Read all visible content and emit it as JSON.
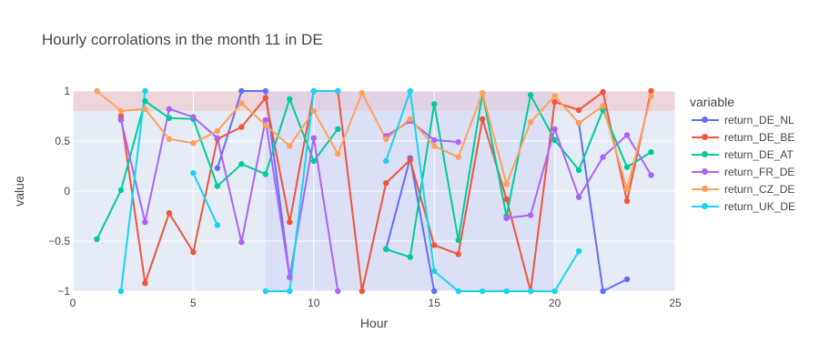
{
  "chart_data": {
    "type": "line",
    "title": "Hourly corrolations in the month 11 in DE",
    "xlabel": "Hour",
    "ylabel": "value",
    "xlim": [
      0,
      25
    ],
    "ylim": [
      -1,
      1
    ],
    "xticks": [
      0,
      5,
      10,
      15,
      20,
      25
    ],
    "yticks": [
      -1,
      -0.5,
      0,
      0.5,
      1
    ],
    "ytick_labels": [
      "−1",
      "−0.5",
      "0",
      "0.5",
      "1"
    ],
    "legend_title": "variable",
    "legend_position": "right",
    "background": "#e5ecf6",
    "shaded_regions": [
      {
        "type": "band_y",
        "y0": 0.8,
        "y1": 1.0,
        "color": "#f2c4c4"
      },
      {
        "type": "band_x",
        "x0": 8,
        "x1": 20,
        "color": "#c8ccf5"
      }
    ],
    "series": [
      {
        "name": "return_DE_NL",
        "color": "#636efa",
        "points": [
          [
            2,
            0.72
          ],
          [
            3,
            null
          ],
          [
            6,
            0.23
          ],
          [
            7,
            1.0
          ],
          [
            8,
            1.0
          ],
          [
            9,
            -0.86
          ],
          [
            10,
            null
          ],
          [
            13,
            -0.58
          ],
          [
            14,
            0.33
          ],
          [
            15,
            -1.0
          ],
          [
            16,
            null
          ],
          [
            18,
            -0.27
          ],
          [
            19,
            null
          ],
          [
            20,
            null
          ],
          [
            21,
            0.68
          ],
          [
            22,
            -1.0
          ],
          [
            23,
            -0.88
          ]
        ]
      },
      {
        "name": "return_DE_BE",
        "color": "#ef553b",
        "points": [
          [
            2,
            0.75
          ],
          [
            3,
            -0.92
          ],
          [
            4,
            -0.22
          ],
          [
            5,
            -0.61
          ],
          [
            6,
            0.52
          ],
          [
            7,
            0.64
          ],
          [
            8,
            0.93
          ],
          [
            9,
            -0.31
          ],
          [
            10,
            1.0
          ],
          [
            11,
            1.0
          ],
          [
            12,
            -1.0
          ],
          [
            13,
            0.08
          ],
          [
            14,
            0.31
          ],
          [
            15,
            -0.54
          ],
          [
            16,
            -0.63
          ],
          [
            17,
            0.72
          ],
          [
            18,
            -0.08
          ],
          [
            19,
            -1.0
          ],
          [
            20,
            0.89
          ],
          [
            21,
            0.81
          ],
          [
            22,
            0.99
          ],
          [
            23,
            -0.1
          ],
          [
            24,
            1.0
          ]
        ]
      },
      {
        "name": "return_DE_AT",
        "color": "#00cc96",
        "points": [
          [
            1,
            -0.48
          ],
          [
            2,
            0.01
          ],
          [
            3,
            0.9
          ],
          [
            4,
            0.73
          ],
          [
            5,
            0.72
          ],
          [
            6,
            0.05
          ],
          [
            7,
            0.27
          ],
          [
            8,
            0.17
          ],
          [
            9,
            0.92
          ],
          [
            10,
            0.3
          ],
          [
            11,
            0.62
          ],
          [
            12,
            null
          ],
          [
            13,
            -0.58
          ],
          [
            14,
            -0.66
          ],
          [
            15,
            0.87
          ],
          [
            16,
            -0.49
          ],
          [
            17,
            0.98
          ],
          [
            18,
            -0.25
          ],
          [
            19,
            0.96
          ],
          [
            20,
            0.51
          ],
          [
            21,
            0.21
          ],
          [
            22,
            0.81
          ],
          [
            23,
            0.24
          ],
          [
            24,
            0.39
          ]
        ]
      },
      {
        "name": "return_FR_DE",
        "color": "#ab63fa",
        "points": [
          [
            2,
            0.71
          ],
          [
            3,
            -0.31
          ],
          [
            4,
            0.82
          ],
          [
            5,
            0.74
          ],
          [
            6,
            0.53
          ],
          [
            7,
            -0.51
          ],
          [
            8,
            0.71
          ],
          [
            9,
            -0.86
          ],
          [
            10,
            0.53
          ],
          [
            11,
            -1.0
          ],
          [
            12,
            null
          ],
          [
            13,
            0.55
          ],
          [
            14,
            0.7
          ],
          [
            15,
            0.51
          ],
          [
            16,
            0.49
          ],
          [
            17,
            null
          ],
          [
            18,
            -0.27
          ],
          [
            19,
            -0.24
          ],
          [
            20,
            0.62
          ],
          [
            21,
            -0.06
          ],
          [
            22,
            0.34
          ],
          [
            23,
            0.56
          ],
          [
            24,
            0.16
          ]
        ]
      },
      {
        "name": "return_CZ_DE",
        "color": "#ffa15a",
        "points": [
          [
            1,
            1.0
          ],
          [
            2,
            0.8
          ],
          [
            3,
            0.82
          ],
          [
            4,
            0.52
          ],
          [
            5,
            0.48
          ],
          [
            6,
            0.6
          ],
          [
            7,
            0.88
          ],
          [
            8,
            0.66
          ],
          [
            9,
            0.45
          ],
          [
            10,
            0.8
          ],
          [
            11,
            0.37
          ],
          [
            12,
            0.98
          ],
          [
            13,
            0.52
          ],
          [
            14,
            0.72
          ],
          [
            15,
            0.45
          ],
          [
            16,
            0.34
          ],
          [
            17,
            0.98
          ],
          [
            18,
            0.07
          ],
          [
            19,
            0.69
          ],
          [
            20,
            0.95
          ],
          [
            21,
            0.68
          ],
          [
            22,
            0.85
          ],
          [
            23,
            0.02
          ],
          [
            24,
            0.95
          ]
        ]
      },
      {
        "name": "return_UK_DE",
        "color": "#19d3f3",
        "points": [
          [
            2,
            -1.0
          ],
          [
            3,
            1.0
          ],
          [
            4,
            null
          ],
          [
            5,
            0.18
          ],
          [
            6,
            -0.34
          ],
          [
            7,
            null
          ],
          [
            8,
            -1.0
          ],
          [
            9,
            -1.0
          ],
          [
            10,
            1.0
          ],
          [
            11,
            1.0
          ],
          [
            12,
            null
          ],
          [
            13,
            0.3
          ],
          [
            14,
            1.0
          ],
          [
            15,
            -0.8
          ],
          [
            16,
            -1.0
          ],
          [
            17,
            -1.0
          ],
          [
            18,
            -1.0
          ],
          [
            19,
            -1.0
          ],
          [
            20,
            -1.0
          ],
          [
            21,
            -0.6
          ]
        ]
      }
    ]
  }
}
